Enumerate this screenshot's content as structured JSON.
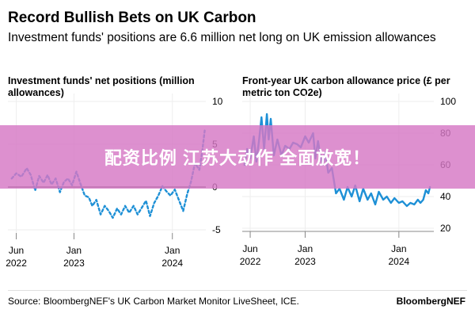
{
  "header": {
    "title": "Record Bullish Bets on UK Carbon",
    "subtitle": "Investment funds' positions are 6.6 million net long on UK emission allowances"
  },
  "banner": {
    "text": "配资比例 江苏大动作 全面放宽！",
    "color": "#d678c4"
  },
  "footer": {
    "source": "Source: BloombergNEF's UK Carbon Market Monitor LiveSheet, ICE.",
    "brand": "BloombergNEF"
  },
  "accent_color": "#1e90d6",
  "chart_data": [
    {
      "type": "line",
      "title": "Investment funds' net positions (million allowances)",
      "style": "dotted",
      "x_ticks": [
        {
          "date": "2022-06-01",
          "label": [
            "Jun",
            "2022"
          ]
        },
        {
          "date": "2023-01-01",
          "label": [
            "Jan",
            "2023"
          ]
        },
        {
          "date": "2024-01-01",
          "label": [
            "Jan",
            "2024"
          ]
        }
      ],
      "xlim": [
        "2022-05-01",
        "2024-05-10"
      ],
      "ylim": [
        -5,
        10
      ],
      "y_ticks": [
        10,
        5,
        0,
        -5
      ],
      "zero_line": true,
      "y_axis_side": "right",
      "series": [
        {
          "color": "#1e90d6",
          "points": [
            [
              "2022-05-15",
              1.0
            ],
            [
              "2022-06-01",
              1.6
            ],
            [
              "2022-06-20",
              1.2
            ],
            [
              "2022-07-10",
              2.2
            ],
            [
              "2022-07-25",
              1.4
            ],
            [
              "2022-08-10",
              -0.4
            ],
            [
              "2022-08-25",
              1.3
            ],
            [
              "2022-09-10",
              0.5
            ],
            [
              "2022-09-25",
              1.4
            ],
            [
              "2022-10-10",
              0.3
            ],
            [
              "2022-10-25",
              1.0
            ],
            [
              "2022-11-10",
              -0.6
            ],
            [
              "2022-11-25",
              0.6
            ],
            [
              "2022-12-10",
              1.0
            ],
            [
              "2022-12-25",
              0.2
            ],
            [
              "2023-01-10",
              1.8
            ],
            [
              "2023-01-25",
              0.4
            ],
            [
              "2023-02-10",
              -1.0
            ],
            [
              "2023-02-25",
              -1.2
            ],
            [
              "2023-03-10",
              -2.2
            ],
            [
              "2023-03-25",
              -1.5
            ],
            [
              "2023-04-10",
              -3.2
            ],
            [
              "2023-04-25",
              -2.2
            ],
            [
              "2023-05-10",
              -2.8
            ],
            [
              "2023-05-25",
              -3.6
            ],
            [
              "2023-06-10",
              -2.5
            ],
            [
              "2023-06-25",
              -3.2
            ],
            [
              "2023-07-10",
              -2.2
            ],
            [
              "2023-07-25",
              -3.0
            ],
            [
              "2023-08-10",
              -2.2
            ],
            [
              "2023-08-25",
              -3.2
            ],
            [
              "2023-09-10",
              -2.4
            ],
            [
              "2023-09-25",
              -1.6
            ],
            [
              "2023-10-10",
              -3.4
            ],
            [
              "2023-10-25",
              -1.9
            ],
            [
              "2023-11-10",
              -1.0
            ],
            [
              "2023-11-25",
              0.1
            ],
            [
              "2023-12-10",
              -0.5
            ],
            [
              "2023-12-25",
              -1.0
            ],
            [
              "2024-01-10",
              -0.3
            ],
            [
              "2024-01-25",
              -1.5
            ],
            [
              "2024-02-10",
              -2.8
            ],
            [
              "2024-02-25",
              -0.8
            ],
            [
              "2024-03-10",
              0.6
            ],
            [
              "2024-03-25",
              2.8
            ],
            [
              "2024-04-10",
              2.0
            ],
            [
              "2024-04-20",
              4.0
            ],
            [
              "2024-04-30",
              6.6
            ]
          ]
        }
      ]
    },
    {
      "type": "line",
      "title": "Front-year UK carbon allowance price (£ per metric ton CO2e)",
      "style": "solid",
      "x_ticks": [
        {
          "date": "2022-06-01",
          "label": [
            "Jun",
            "2022"
          ]
        },
        {
          "date": "2023-01-01",
          "label": [
            "Jan",
            "2023"
          ]
        },
        {
          "date": "2024-01-01",
          "label": [
            "Jan",
            "2024"
          ]
        }
      ],
      "xlim": [
        "2022-05-01",
        "2024-05-10"
      ],
      "ylim": [
        20,
        100
      ],
      "y_ticks": [
        100,
        80,
        60,
        40,
        20
      ],
      "zero_line": false,
      "y_axis_side": "right",
      "series": [
        {
          "color": "#1e90d6",
          "points": [
            [
              "2022-05-10",
              60
            ],
            [
              "2022-05-20",
              70
            ],
            [
              "2022-06-01",
              64
            ],
            [
              "2022-06-15",
              78
            ],
            [
              "2022-06-25",
              62
            ],
            [
              "2022-07-05",
              75
            ],
            [
              "2022-07-15",
              90
            ],
            [
              "2022-07-25",
              70
            ],
            [
              "2022-08-05",
              92
            ],
            [
              "2022-08-12",
              76
            ],
            [
              "2022-08-20",
              89
            ],
            [
              "2022-09-01",
              66
            ],
            [
              "2022-09-15",
              76
            ],
            [
              "2022-10-01",
              66
            ],
            [
              "2022-10-15",
              72
            ],
            [
              "2022-11-01",
              70
            ],
            [
              "2022-11-15",
              74
            ],
            [
              "2022-12-01",
              73
            ],
            [
              "2022-12-15",
              71
            ],
            [
              "2023-01-01",
              78
            ],
            [
              "2023-01-15",
              74
            ],
            [
              "2023-02-01",
              80
            ],
            [
              "2023-02-10",
              64
            ],
            [
              "2023-02-20",
              75
            ],
            [
              "2023-03-01",
              66
            ],
            [
              "2023-03-10",
              60
            ],
            [
              "2023-03-20",
              68
            ],
            [
              "2023-04-01",
              55
            ],
            [
              "2023-04-15",
              58
            ],
            [
              "2023-05-01",
              42
            ],
            [
              "2023-05-15",
              45
            ],
            [
              "2023-06-01",
              38
            ],
            [
              "2023-06-15",
              46
            ],
            [
              "2023-07-01",
              40
            ],
            [
              "2023-07-15",
              47
            ],
            [
              "2023-08-01",
              37
            ],
            [
              "2023-08-15",
              45
            ],
            [
              "2023-09-01",
              38
            ],
            [
              "2023-09-15",
              42
            ],
            [
              "2023-10-01",
              35
            ],
            [
              "2023-10-15",
              43
            ],
            [
              "2023-11-01",
              38
            ],
            [
              "2023-11-15",
              40
            ],
            [
              "2023-12-01",
              36
            ],
            [
              "2023-12-15",
              39
            ],
            [
              "2024-01-01",
              36
            ],
            [
              "2024-01-15",
              37
            ],
            [
              "2024-02-01",
              34
            ],
            [
              "2024-02-15",
              36
            ],
            [
              "2024-03-01",
              35
            ],
            [
              "2024-03-15",
              38
            ],
            [
              "2024-03-25",
              36
            ],
            [
              "2024-04-05",
              38
            ],
            [
              "2024-04-15",
              44
            ],
            [
              "2024-04-25",
              42
            ],
            [
              "2024-05-01",
              46
            ]
          ]
        }
      ]
    }
  ]
}
